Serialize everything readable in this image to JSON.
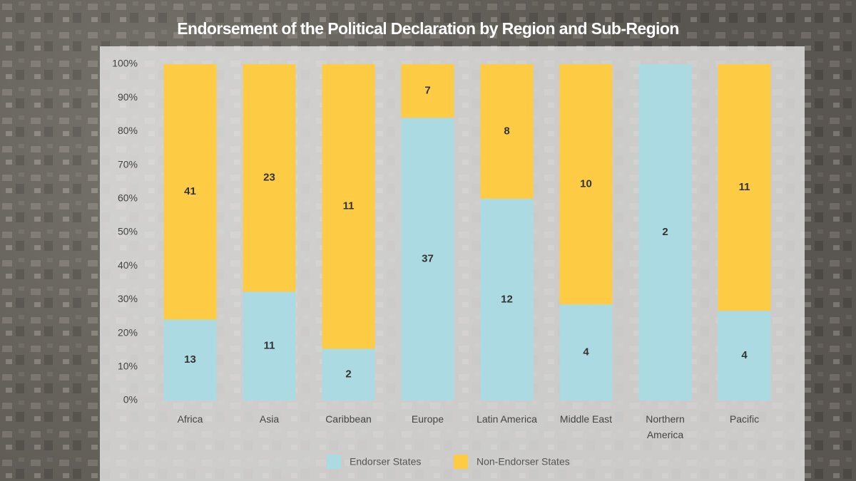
{
  "chart_data": {
    "type": "bar",
    "stacking": "percent",
    "title": "Endorsement of the Political Declaration by Region and Sub-Region",
    "categories": [
      "Africa",
      "Asia",
      "Caribbean",
      "Europe",
      "Latin America",
      "Middle East",
      "Northern America",
      "Pacific"
    ],
    "series": [
      {
        "name": "Endorser States",
        "color": "#acdae3",
        "values": [
          13,
          11,
          2,
          37,
          12,
          4,
          2,
          4
        ]
      },
      {
        "name": "Non-Endorser States",
        "color": "#fecb45",
        "values": [
          41,
          23,
          11,
          7,
          8,
          10,
          0,
          11
        ]
      }
    ],
    "ylim": [
      0,
      100
    ],
    "yticks": [
      {
        "value": 0,
        "label": "0%"
      },
      {
        "value": 10,
        "label": "10%"
      },
      {
        "value": 20,
        "label": "20%"
      },
      {
        "value": 30,
        "label": "30%"
      },
      {
        "value": 40,
        "label": "40%"
      },
      {
        "value": 50,
        "label": "50%"
      },
      {
        "value": 60,
        "label": "60%"
      },
      {
        "value": 70,
        "label": "70%"
      },
      {
        "value": 80,
        "label": "80%"
      },
      {
        "value": 90,
        "label": "90%"
      },
      {
        "value": 100,
        "label": "100%"
      }
    ],
    "grid": false,
    "legend": "bottom"
  }
}
